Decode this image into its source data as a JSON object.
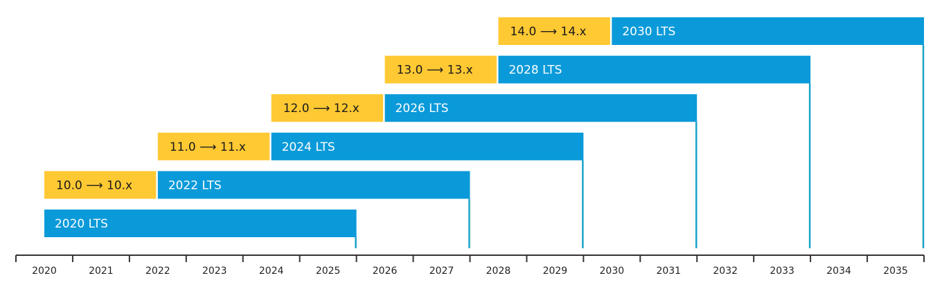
{
  "chart_data": {
    "type": "bar",
    "orientation": "horizontal-timeline",
    "title": "",
    "xlabel": "",
    "ylabel": "",
    "xlim": [
      2020,
      2036
    ],
    "x_ticks": [
      "2020",
      "2021",
      "2022",
      "2023",
      "2024",
      "2025",
      "2026",
      "2027",
      "2028",
      "2029",
      "2030",
      "2031",
      "2032",
      "2033",
      "2034",
      "2035"
    ],
    "grid": false,
    "legend": "none",
    "colors": {
      "lts": "#0A9AD9",
      "preview": "#FFC933",
      "axis": "#333333",
      "end_marker": "#1AA3C8"
    },
    "releases": [
      {
        "preview_label": "",
        "preview_start": null,
        "lts_label": "2020 LTS",
        "lts_start": 2020.5,
        "end": 2026.0
      },
      {
        "preview_label": "10.0 ⟶ 10.x",
        "preview_start": 2020.5,
        "lts_label": "2022 LTS",
        "lts_start": 2022.5,
        "end": 2028.0
      },
      {
        "preview_label": "11.0 ⟶ 11.x",
        "preview_start": 2022.5,
        "lts_label": "2024 LTS",
        "lts_start": 2024.5,
        "end": 2030.0
      },
      {
        "preview_label": "12.0 ⟶ 12.x",
        "preview_start": 2024.5,
        "lts_label": "2026 LTS",
        "lts_start": 2026.5,
        "end": 2032.0
      },
      {
        "preview_label": "13.0 ⟶ 13.x",
        "preview_start": 2026.5,
        "lts_label": "2028 LTS",
        "lts_start": 2028.5,
        "end": 2034.0
      },
      {
        "preview_label": "14.0 ⟶ 14.x",
        "preview_start": 2028.5,
        "lts_label": "2030 LTS",
        "lts_start": 2030.5,
        "end": 2036.0
      }
    ]
  }
}
